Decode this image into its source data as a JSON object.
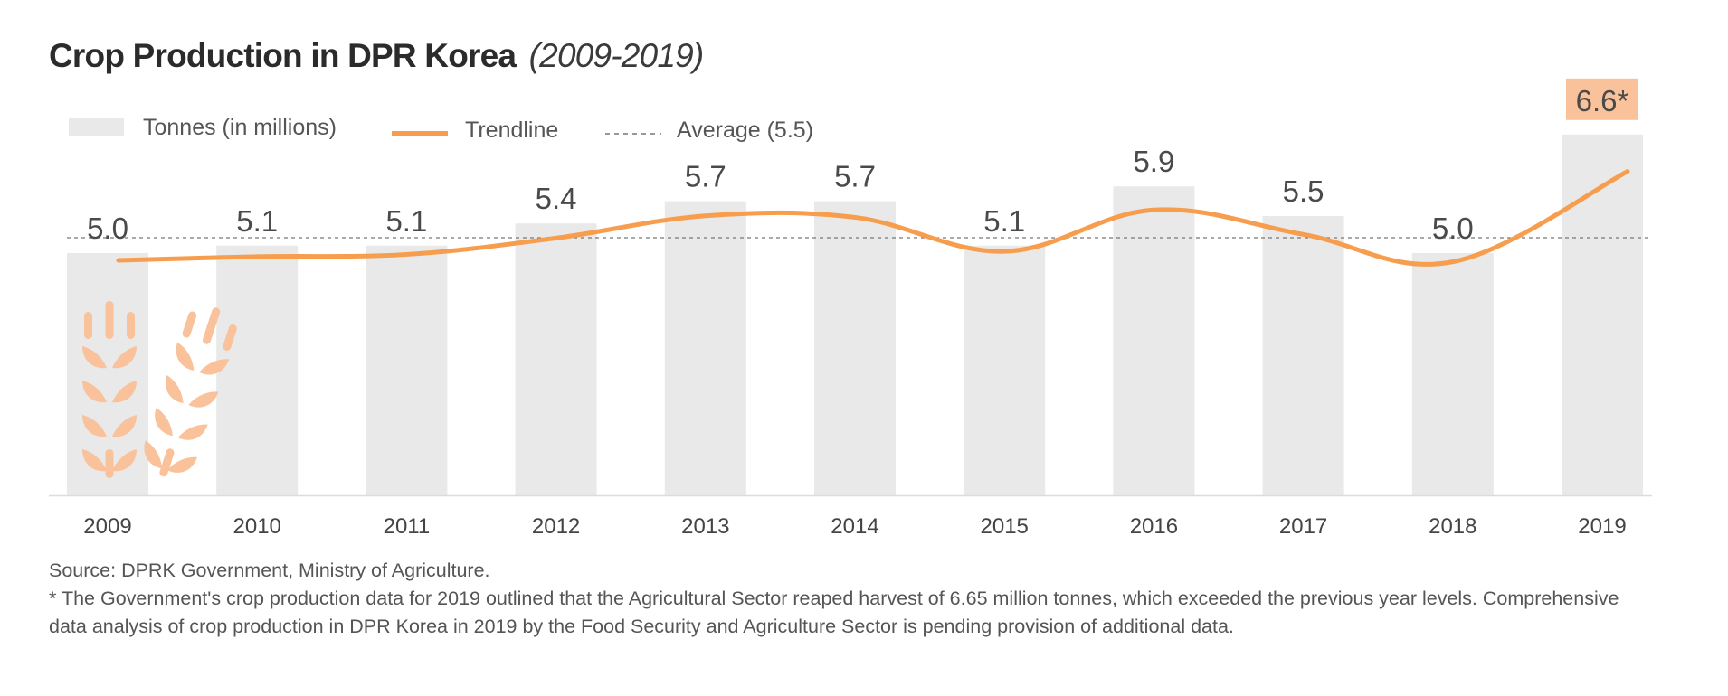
{
  "chart_data": {
    "type": "bar",
    "title": "Crop Production in DPR Korea",
    "subtitle": "(2009-2019)",
    "categories": [
      "2009",
      "2010",
      "2011",
      "2012",
      "2013",
      "2014",
      "2015",
      "2016",
      "2017",
      "2018",
      "2019"
    ],
    "series": [
      {
        "name": "Tonnes (in millions)",
        "type": "bar",
        "values": [
          5.0,
          5.1,
          5.1,
          5.4,
          5.7,
          5.7,
          5.1,
          5.9,
          5.5,
          5.0,
          6.6
        ]
      },
      {
        "name": "Trendline",
        "type": "line",
        "values": [
          5.0,
          5.05,
          5.08,
          5.3,
          5.6,
          5.58,
          5.12,
          5.68,
          5.35,
          4.98,
          6.2
        ]
      }
    ],
    "data_labels": [
      "5.0",
      "5.1",
      "5.1",
      "5.4",
      "5.7",
      "5.7",
      "5.1",
      "5.9",
      "5.5",
      "5.0",
      "6.6*"
    ],
    "average": {
      "label": "Average (5.5)",
      "value": 5.5
    },
    "highlight_category": "2019",
    "ylim": [
      0,
      7
    ],
    "xlabel": "",
    "ylabel": "",
    "grid": false,
    "legend_position": "top-left",
    "colors": {
      "bar": "#e8e9e8",
      "trend": "#f79d4e",
      "highlight": "#f9c29b",
      "average_line": "#777777",
      "icon": "#f9c29b"
    }
  },
  "legend": {
    "bars": "Tonnes (in millions)",
    "trend": "Trendline",
    "average": "Average (5.5)"
  },
  "notes": {
    "source": "Source: DPRK Government, Ministry of Agriculture.",
    "footnote": "* The Government's crop production data for 2019 outlined that the Agricultural Sector reaped harvest of 6.65 million tonnes, which exceeded the previous year levels. Comprehensive data analysis of crop production in DPR Korea in 2019 by the Food Security and Agriculture Sector is pending provision of additional data."
  },
  "icons": [
    "wheat-icon",
    "wheat-icon"
  ]
}
